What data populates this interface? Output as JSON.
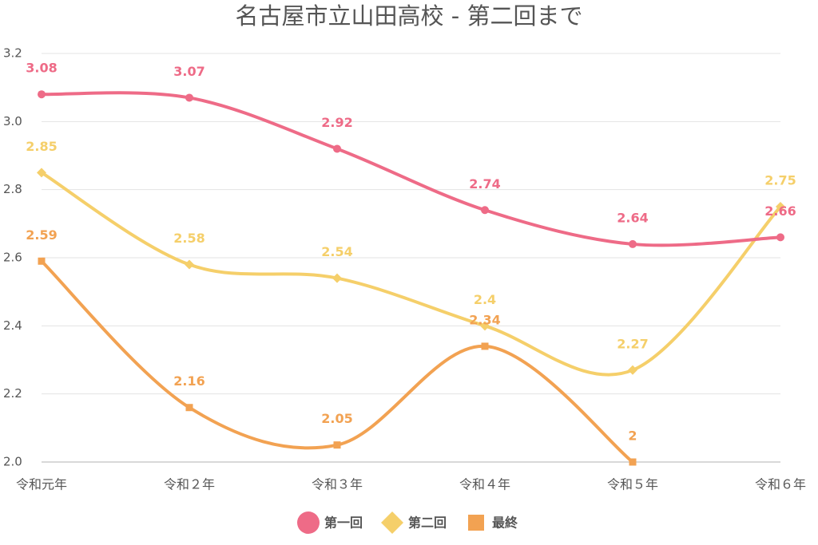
{
  "chart_data": {
    "type": "line",
    "title": "名古屋市立山田高校 - 第二回まで",
    "categories": [
      "令和元年",
      "令和２年",
      "令和３年",
      "令和４年",
      "令和５年",
      "令和６年"
    ],
    "series": [
      {
        "name": "第一回",
        "color": "#ee6b87",
        "marker": "circle",
        "values": [
          3.08,
          3.07,
          2.92,
          2.74,
          2.64,
          2.66
        ]
      },
      {
        "name": "第二回",
        "color": "#f5cf6a",
        "marker": "diamond",
        "values": [
          2.85,
          2.58,
          2.54,
          2.4,
          2.27,
          2.75
        ]
      },
      {
        "name": "最終",
        "color": "#f2a252",
        "marker": "square",
        "values": [
          2.59,
          2.16,
          2.05,
          2.34,
          2.0,
          null
        ]
      }
    ],
    "ylim": [
      2.0,
      3.2
    ],
    "yticks": [
      {
        "value": 2.0,
        "label": "2.0"
      },
      2.2,
      2.4,
      2.6,
      2.8,
      {
        "value": 3.0,
        "label": "3.0"
      },
      3.2
    ],
    "grid": true,
    "legend": "bottom"
  }
}
